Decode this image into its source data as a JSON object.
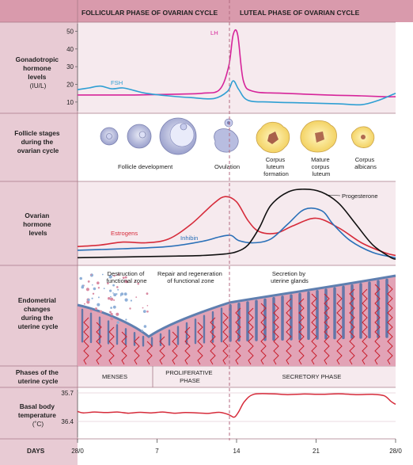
{
  "headers": {
    "follicular": "FOLLICULAR PHASE OF OVARIAN CYCLE",
    "luteal": "LUTEAL PHASE OF OVARIAN CYCLE"
  },
  "rows": {
    "gonadotropic": [
      "Gonadotropic",
      "hormone",
      "levels",
      "(IU/L)"
    ],
    "follicle": [
      "Follicle stages",
      "during the",
      "ovarian cycle"
    ],
    "ovarian": [
      "Ovarian",
      "hormone",
      "levels"
    ],
    "endometrial": [
      "Endometrial",
      "changes",
      "during the",
      "uterine cycle"
    ],
    "phases": [
      "Phases of the",
      "uterine cycle"
    ],
    "basal": [
      "Basal body",
      "temperature",
      "(˚C)"
    ]
  },
  "follicle_labels": {
    "development": "Follicle development",
    "ovulation": "Ovulation",
    "cl_formation": [
      "Corpus",
      "luteum",
      "formation"
    ],
    "mature_cl": [
      "Mature",
      "corpus",
      "luteum"
    ],
    "albicans": [
      "Corpus",
      "albicans"
    ]
  },
  "endometrium_labels": {
    "destruction": [
      "Destruction of",
      "functional zone"
    ],
    "repair": [
      "Repair and regeneration",
      "of functional zone"
    ],
    "secretion": [
      "Secretion by",
      "uterine glands"
    ]
  },
  "uterine_phases": {
    "menses": "MENSES",
    "proliferative": [
      "PROLIFERATIVE",
      "PHASE"
    ],
    "secretory": "SECRETORY PHASE"
  },
  "days": {
    "label": "DAYS",
    "ticks": [
      "28/0",
      "7",
      "14",
      "21",
      "28/0"
    ]
  },
  "chart_data": [
    {
      "type": "line",
      "ylabel": "Gonadotropic hormone levels (IU/L)",
      "yticks": [
        10,
        20,
        30,
        40,
        50
      ],
      "ylim": [
        5,
        52
      ],
      "xlim": [
        0,
        28
      ],
      "series": [
        {
          "name": "LH",
          "color": "#d6249a",
          "x": [
            0,
            2,
            5,
            9,
            11,
            12.5,
            13.3,
            13.7,
            14.1,
            14.6,
            15.5,
            18,
            22,
            25,
            27,
            28
          ],
          "y": [
            14,
            14,
            14,
            14.5,
            15,
            17,
            30,
            48,
            48,
            22,
            16,
            15,
            14,
            13.5,
            13,
            13
          ]
        },
        {
          "name": "FSH",
          "color": "#2f9fd3",
          "x": [
            0,
            1,
            2,
            3,
            4,
            5,
            6,
            8,
            10,
            12,
            13.2,
            13.7,
            14.2,
            15,
            17,
            20,
            23,
            25,
            26.5,
            28
          ],
          "y": [
            17,
            18,
            19,
            17.5,
            18,
            16.5,
            15,
            13.5,
            12.5,
            12,
            16,
            22,
            17,
            11,
            10,
            9.5,
            9,
            8.5,
            11,
            15
          ]
        }
      ]
    },
    {
      "type": "line",
      "ylabel": "Ovarian hormone levels",
      "xlim": [
        0,
        28
      ],
      "ylim": [
        0,
        1
      ],
      "series": [
        {
          "name": "Estrogens",
          "color": "#d62b3a",
          "x": [
            0,
            2,
            4,
            6,
            8,
            10,
            12,
            13,
            14,
            15,
            16,
            17.5,
            19,
            21,
            23,
            25,
            27,
            28
          ],
          "y": [
            0.2,
            0.22,
            0.26,
            0.25,
            0.3,
            0.5,
            0.78,
            0.87,
            0.8,
            0.55,
            0.4,
            0.38,
            0.48,
            0.58,
            0.45,
            0.25,
            0.12,
            0.08
          ]
        },
        {
          "name": "Inhibin",
          "color": "#2a70b8",
          "x": [
            0,
            4,
            8,
            11,
            12.5,
            13.5,
            14.2,
            15.5,
            17,
            18.5,
            20,
            21.5,
            22.5,
            24,
            26,
            28
          ],
          "y": [
            0.15,
            0.17,
            0.2,
            0.27,
            0.33,
            0.35,
            0.28,
            0.25,
            0.3,
            0.5,
            0.7,
            0.68,
            0.5,
            0.28,
            0.12,
            0.05
          ]
        },
        {
          "name": "Progesterone",
          "color": "#111111",
          "x": [
            0,
            4,
            8,
            11,
            13,
            14,
            15,
            16,
            17,
            18.5,
            20,
            21.5,
            23,
            24.5,
            26,
            27.5,
            28
          ],
          "y": [
            0.05,
            0.06,
            0.07,
            0.08,
            0.1,
            0.13,
            0.22,
            0.45,
            0.75,
            0.93,
            0.97,
            0.93,
            0.78,
            0.5,
            0.22,
            0.06,
            0.03
          ]
        }
      ]
    },
    {
      "type": "line",
      "ylabel": "Basal body temperature (˚C)",
      "yticks": [
        "35.7",
        "36.4"
      ],
      "xlim": [
        0,
        28
      ],
      "series": [
        {
          "name": "Basal body temperature",
          "color": "#d62b3a",
          "x": [
            0,
            0.5,
            1.5,
            2.5,
            3.5,
            4.5,
            5.5,
            6.5,
            7.5,
            8.5,
            9.5,
            10.5,
            11.5,
            12.5,
            13.3,
            13.8,
            14.2,
            14.7,
            15.5,
            17,
            18.5,
            20,
            21.5,
            23,
            24.5,
            26,
            27,
            27.6,
            28
          ],
          "y": [
            0.35,
            0.3,
            0.33,
            0.31,
            0.33,
            0.29,
            0.32,
            0.3,
            0.33,
            0.29,
            0.31,
            0.3,
            0.28,
            0.32,
            0.24,
            0.15,
            0.35,
            0.7,
            0.95,
            0.97,
            0.94,
            0.96,
            0.95,
            0.97,
            0.94,
            0.95,
            0.9,
            0.7,
            0.6
          ]
        }
      ]
    }
  ]
}
